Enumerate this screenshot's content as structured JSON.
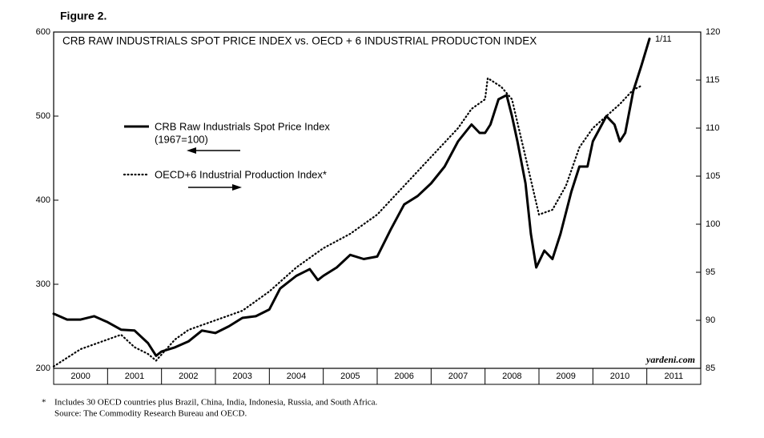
{
  "chart_data": {
    "type": "line",
    "figure_label": "Figure 2.",
    "title": "CRB RAW INDUSTRIALS SPOT PRICE INDEX vs. OECD + 6 INDUSTRIAL PRODUCTON INDEX",
    "end_label": "1/11",
    "source_mark": "yardeni.com",
    "footnote_marker": "*",
    "footnote": "Includes 30 OECD countries plus Brazil, China, India, Indonesia, Russia, and South Africa.",
    "source": "Source: The Commodity Research Bureau and OECD.",
    "year_labels": [
      "2000",
      "2001",
      "2002",
      "2003",
      "2004",
      "2005",
      "2006",
      "2007",
      "2008",
      "2009",
      "2010",
      "2011"
    ],
    "xlim": [
      2000,
      2012
    ],
    "ylim": [
      200,
      600
    ],
    "yticks": [
      200,
      300,
      400,
      500,
      600
    ],
    "y2lim": [
      85,
      120
    ],
    "y2ticks": [
      85,
      90,
      95,
      100,
      105,
      110,
      115,
      120
    ],
    "series": [
      {
        "name": "CRB Raw Industrials Spot Price Index",
        "note": "(1967=100)",
        "color": "#000000",
        "dash": "solid",
        "axis": "y",
        "x": [
          2000.0,
          2000.25,
          2000.5,
          2000.75,
          2001.0,
          2001.25,
          2001.5,
          2001.75,
          2001.9,
          2002.0,
          2002.25,
          2002.5,
          2002.75,
          2003.0,
          2003.25,
          2003.5,
          2003.75,
          2004.0,
          2004.2,
          2004.5,
          2004.75,
          2004.9,
          2005.0,
          2005.25,
          2005.5,
          2005.75,
          2006.0,
          2006.25,
          2006.5,
          2006.75,
          2007.0,
          2007.25,
          2007.5,
          2007.75,
          2007.9,
          2008.0,
          2008.1,
          2008.25,
          2008.4,
          2008.5,
          2008.6,
          2008.75,
          2008.85,
          2008.95,
          2009.1,
          2009.25,
          2009.4,
          2009.6,
          2009.75,
          2009.9,
          2010.0,
          2010.25,
          2010.4,
          2010.5,
          2010.6,
          2010.75,
          2010.9,
          2011.05
        ],
        "values": [
          265,
          258,
          258,
          262,
          255,
          246,
          245,
          230,
          215,
          220,
          225,
          232,
          245,
          242,
          250,
          260,
          262,
          270,
          295,
          310,
          318,
          305,
          310,
          320,
          335,
          330,
          333,
          365,
          395,
          405,
          420,
          440,
          470,
          490,
          480,
          480,
          490,
          520,
          525,
          500,
          470,
          420,
          360,
          320,
          340,
          330,
          360,
          410,
          440,
          440,
          470,
          500,
          490,
          470,
          480,
          530,
          560,
          592
        ]
      },
      {
        "name": "OECD+6 Industrial Production Index*",
        "color": "#000000",
        "dash": "dotted",
        "axis": "y2",
        "x": [
          2000.0,
          2000.5,
          2001.0,
          2001.25,
          2001.5,
          2001.75,
          2001.9,
          2002.25,
          2002.5,
          2003.0,
          2003.5,
          2004.0,
          2004.5,
          2005.0,
          2005.5,
          2006.0,
          2006.5,
          2007.0,
          2007.5,
          2007.75,
          2008.0,
          2008.05,
          2008.3,
          2008.5,
          2008.75,
          2009.0,
          2009.25,
          2009.5,
          2009.75,
          2010.0,
          2010.5,
          2010.75,
          2010.9
        ],
        "values": [
          85.2,
          87,
          88,
          88.5,
          87.2,
          86.5,
          85.8,
          88,
          89,
          90,
          91,
          93,
          95.5,
          97.5,
          99,
          101,
          104,
          107,
          110,
          112,
          113,
          115.2,
          114.3,
          113,
          107,
          101,
          101.5,
          104,
          108,
          110,
          112.5,
          114,
          114.4
        ]
      }
    ]
  }
}
